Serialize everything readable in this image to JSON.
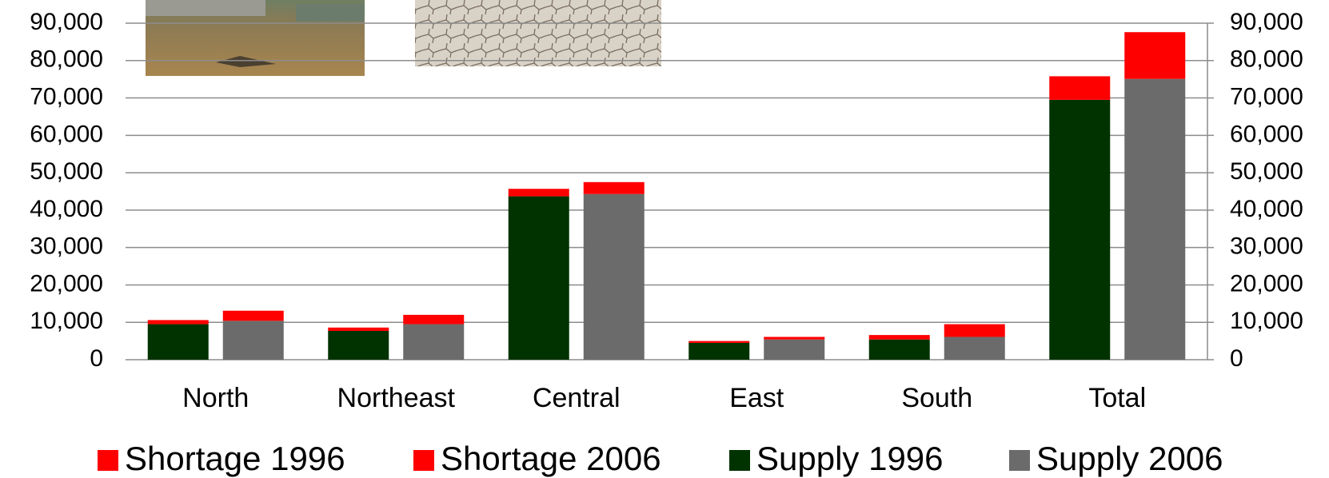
{
  "chart_data": {
    "type": "stacked_bar",
    "categories": [
      "North",
      "Northeast",
      "Central",
      "East",
      "South",
      "Total"
    ],
    "series": [
      {
        "name": "Shortage 1996",
        "color": "#ff0000",
        "values": [
          1100,
          900,
          2000,
          500,
          1200,
          6300
        ]
      },
      {
        "name": "Shortage 2006",
        "color": "#ff0000",
        "values": [
          2700,
          2500,
          3200,
          700,
          3400,
          12500
        ]
      },
      {
        "name": "Supply 1996",
        "color": "#003300",
        "values": [
          9500,
          7700,
          43700,
          4500,
          5400,
          69500
        ]
      },
      {
        "name": "Supply 2006",
        "color": "#6b6b6b",
        "values": [
          10400,
          9500,
          44300,
          5400,
          6100,
          75100
        ]
      }
    ],
    "ylim": [
      0,
      90000
    ],
    "yticks": [
      0,
      {
        "value": 10000,
        "label": "10,000"
      },
      {
        "value": 20000,
        "label": "20,000"
      },
      {
        "value": 30000,
        "label": "30,000"
      },
      {
        "value": 40000,
        "label": "40,000"
      },
      {
        "value": 50000,
        "label": "50,000"
      },
      {
        "value": 60000,
        "label": "60,000"
      },
      {
        "value": 70000,
        "label": "70,000"
      },
      {
        "value": 80000,
        "label": "80,000"
      },
      {
        "value": 90000,
        "label": "90,000"
      }
    ],
    "y2lim": [
      0,
      90000
    ],
    "y2ticks": [
      0,
      {
        "value": 10000,
        "label": "10,000"
      },
      {
        "value": 20000,
        "label": "20,000"
      },
      {
        "value": 30000,
        "label": "30,000"
      },
      {
        "value": 40000,
        "label": "40,000"
      },
      {
        "value": 50000,
        "label": "50,000"
      },
      {
        "value": 60000,
        "label": "60,000"
      },
      {
        "value": 70000,
        "label": "70,000"
      },
      {
        "value": 80000,
        "label": "80,000"
      },
      {
        "value": 90000,
        "label": "90,000"
      }
    ],
    "grid": true,
    "legend": "bottom"
  }
}
